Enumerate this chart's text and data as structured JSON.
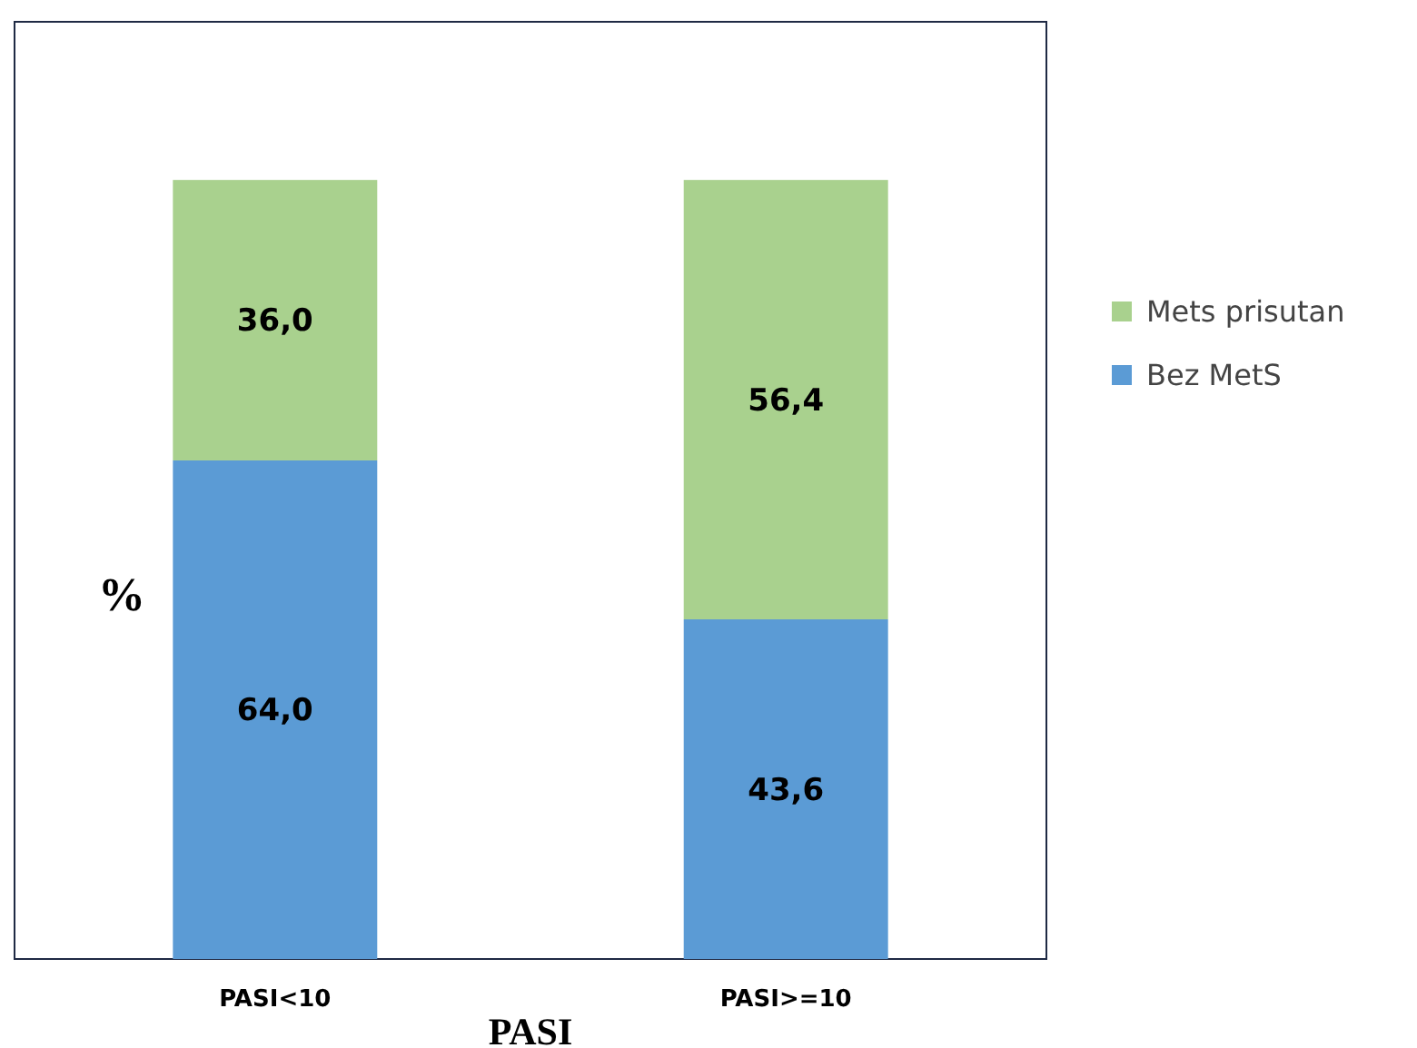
{
  "chart_data": {
    "type": "bar",
    "stacked": true,
    "xlabel": "PASI",
    "ylabel": "%",
    "categories": [
      "PASI<10",
      "PASI>=10"
    ],
    "series": [
      {
        "name": "Bez MetS",
        "color": "#5b9bd5",
        "values": [
          64.0,
          43.6
        ],
        "value_labels": [
          "64,0",
          "43,6"
        ]
      },
      {
        "name": "Mets prisutan",
        "color": "#a9d18e",
        "values": [
          36.0,
          56.4
        ],
        "value_labels": [
          "36,0",
          "56,4"
        ]
      }
    ],
    "legend": "right",
    "grid": false
  }
}
